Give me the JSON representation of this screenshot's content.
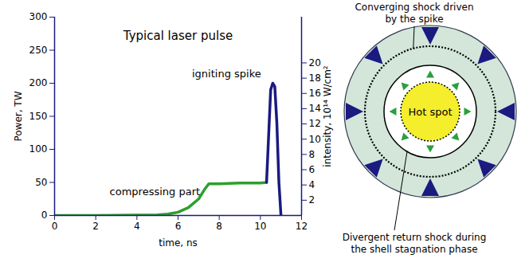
{
  "chart_data": {
    "type": "line",
    "title": "Typical laser pulse",
    "x_label": "time, ns",
    "y_label": "Power, TW",
    "y2_label": "intensity, 10¹⁴ W/cm²",
    "xlim": [
      0,
      12
    ],
    "xticks": [
      0,
      2,
      4,
      6,
      8,
      10,
      12
    ],
    "ylim": [
      0,
      300
    ],
    "yticks": [
      0,
      50,
      100,
      150,
      200,
      250,
      300
    ],
    "y2lim": [
      0,
      26
    ],
    "y2ticks": [
      2,
      4,
      6,
      8,
      10,
      12,
      14,
      16,
      18,
      20
    ],
    "grid": false,
    "series": [
      {
        "name": "compressing part",
        "color": "#2ca02c",
        "x": [
          0,
          1,
          2,
          3,
          4,
          5,
          5.5,
          6,
          6.5,
          7,
          7.3,
          7.5,
          8,
          9,
          10,
          10.3
        ],
        "values": [
          0,
          0,
          0,
          0.2,
          0.5,
          1,
          2,
          5,
          12,
          25,
          40,
          48,
          48,
          49,
          49,
          50
        ]
      },
      {
        "name": "igniting spike",
        "color": "#1a1a80",
        "x": [
          10.3,
          10.4,
          10.5,
          10.6,
          10.7,
          10.8,
          10.9,
          11
        ],
        "values": [
          50,
          120,
          190,
          200,
          195,
          140,
          50,
          0
        ]
      }
    ],
    "annotations": [
      {
        "text": "compressing part",
        "x": 7.3,
        "y": 48
      },
      {
        "text": "igniting spike",
        "x": 10.5,
        "y": 190
      }
    ]
  },
  "diagram": {
    "outer_label": [
      "Converging shock driven",
      "by the spike"
    ],
    "center_label": "Hot spot",
    "inner_label": [
      "Divergent return shock during",
      "the shell stagnation phase"
    ]
  }
}
